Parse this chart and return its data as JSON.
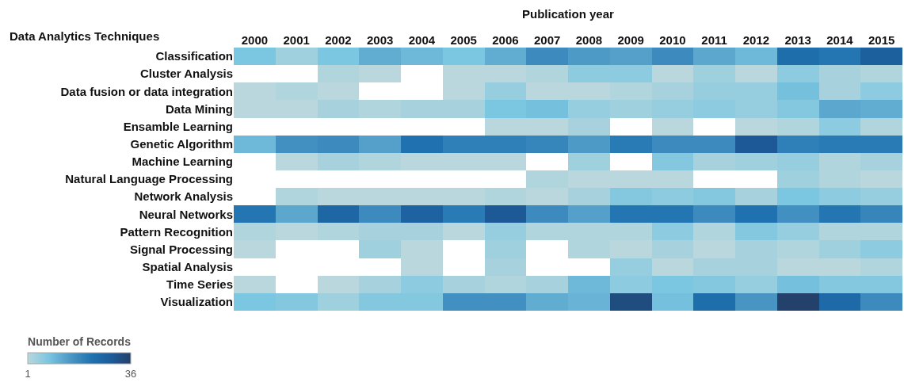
{
  "chart_data": {
    "type": "heatmap",
    "xlabel": "Publication year",
    "ylabel": "Data Analytics Techniques",
    "clabel": "Number of Records",
    "categories": [
      "2000",
      "2001",
      "2002",
      "2003",
      "2004",
      "2005",
      "2006",
      "2007",
      "2008",
      "2009",
      "2010",
      "2011",
      "2012",
      "2013",
      "2014",
      "2015"
    ],
    "y_categories": [
      "Classification",
      "Cluster Analysis",
      "Data fusion or data integration",
      "Data Mining",
      "Ensamble Learning",
      "Genetic Algorithm",
      "Machine Learning",
      "Natural Language Processing",
      "Network Analysis",
      "Neural Networks",
      "Pattern Recognition",
      "Signal Processing",
      "Spatial Analysis",
      "Time Series",
      "Visualization"
    ],
    "cells": [
      [
        8,
        4,
        8,
        12,
        10,
        8,
        12,
        18,
        15,
        14,
        18,
        13,
        10,
        24,
        22,
        28
      ],
      [
        null,
        null,
        2,
        1,
        null,
        1,
        1,
        2,
        6,
        6,
        1,
        4,
        1,
        6,
        3,
        2
      ],
      [
        1,
        2,
        1,
        null,
        null,
        1,
        5,
        1,
        1,
        2,
        3,
        5,
        5,
        9,
        3,
        6
      ],
      [
        1,
        1,
        3,
        2,
        3,
        3,
        8,
        9,
        5,
        4,
        5,
        6,
        5,
        7,
        13,
        12
      ],
      [
        null,
        null,
        null,
        null,
        null,
        null,
        1,
        1,
        3,
        null,
        1,
        null,
        1,
        2,
        6,
        2
      ],
      [
        10,
        17,
        18,
        14,
        23,
        20,
        20,
        19,
        15,
        21,
        18,
        18,
        30,
        20,
        21,
        21
      ],
      [
        null,
        1,
        3,
        2,
        1,
        1,
        1,
        null,
        4,
        null,
        7,
        3,
        4,
        5,
        2,
        3
      ],
      [
        null,
        null,
        null,
        null,
        null,
        null,
        null,
        2,
        1,
        1,
        1,
        null,
        null,
        4,
        2,
        1
      ],
      [
        null,
        2,
        1,
        1,
        1,
        1,
        2,
        1,
        3,
        7,
        6,
        7,
        3,
        8,
        6,
        5
      ],
      [
        22,
        13,
        26,
        18,
        27,
        21,
        30,
        18,
        14,
        22,
        22,
        18,
        23,
        17,
        22,
        19
      ],
      [
        2,
        1,
        2,
        3,
        3,
        1,
        5,
        2,
        2,
        2,
        6,
        2,
        7,
        5,
        2,
        2
      ],
      [
        1,
        null,
        null,
        4,
        1,
        null,
        4,
        null,
        2,
        1,
        3,
        1,
        3,
        2,
        4,
        6
      ],
      [
        null,
        null,
        null,
        null,
        1,
        null,
        3,
        null,
        null,
        5,
        1,
        3,
        3,
        1,
        1,
        2
      ],
      [
        1,
        null,
        1,
        3,
        6,
        3,
        2,
        3,
        10,
        6,
        8,
        7,
        5,
        9,
        7,
        7
      ],
      [
        8,
        7,
        4,
        7,
        7,
        17,
        17,
        12,
        11,
        33,
        9,
        24,
        16,
        36,
        25,
        18
      ]
    ],
    "clim": [
      1,
      36
    ],
    "cticks": [
      1,
      36
    ]
  }
}
